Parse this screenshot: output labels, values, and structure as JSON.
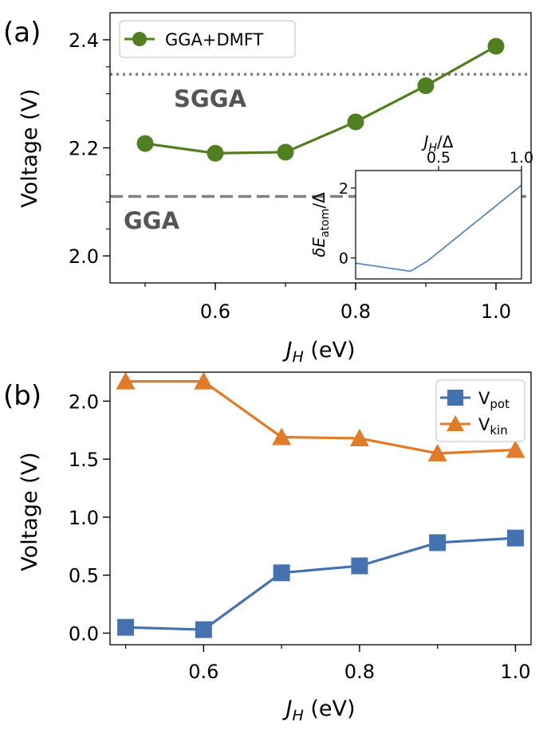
{
  "colors": {
    "green": "#4f7f1f",
    "blue": "#4472b0",
    "orange": "#e07b27",
    "ref_gray": "#808080",
    "ref_text": "#555555",
    "inset_line": "#5b86b5"
  },
  "chart_data": [
    {
      "panel_label": "(a)",
      "type": "line",
      "xlabel_main": "J",
      "xlabel_sub": "H",
      "xlabel_unit": " (eV)",
      "ylabel": "Voltage (V)",
      "xlim": [
        0.45,
        1.05
      ],
      "ylim": [
        1.95,
        2.45
      ],
      "xticks": [
        0.6,
        0.8,
        1.0
      ],
      "xtick_labels": [
        "0.6",
        "0.8",
        "1.0"
      ],
      "yticks": [
        2.0,
        2.2,
        2.4
      ],
      "ytick_labels": [
        "2.0",
        "2.2",
        "2.4"
      ],
      "legend_position": "top-left",
      "series": [
        {
          "name": "GGA+DMFT",
          "x": [
            0.5,
            0.6,
            0.7,
            0.8,
            0.9,
            1.0
          ],
          "values": [
            2.208,
            2.19,
            2.192,
            2.248,
            2.315,
            2.388
          ]
        }
      ],
      "reference_lines": [
        {
          "label": "SGGA",
          "value": 2.336,
          "style": "dotted"
        },
        {
          "label": "GGA",
          "value": 2.11,
          "style": "dashed"
        }
      ],
      "inset": {
        "xlabel_main": "J",
        "xlabel_sub": "H",
        "xlabel_rest": "/Δ",
        "ylabel_main": "δE",
        "ylabel_sub": "atom",
        "ylabel_rest": "/Δ",
        "xlim": [
          0.0,
          1.0
        ],
        "ylim": [
          -0.6,
          2.5
        ],
        "xticks": [
          0.5,
          1.0
        ],
        "xtick_labels": [
          "0.5",
          "1.0"
        ],
        "yticks": [
          0,
          2
        ],
        "ytick_labels": [
          "0",
          "2"
        ],
        "x": [
          0.0,
          0.33,
          0.43,
          1.0
        ],
        "y": [
          -0.15,
          -0.38,
          -0.1,
          2.08
        ]
      }
    },
    {
      "panel_label": "(b)",
      "type": "line",
      "xlabel_main": "J",
      "xlabel_sub": "H",
      "xlabel_unit": " (eV)",
      "ylabel": "Voltage (V)",
      "xlim": [
        0.48,
        1.02
      ],
      "ylim": [
        -0.1,
        2.25
      ],
      "xticks": [
        0.6,
        0.8,
        1.0
      ],
      "xtick_labels": [
        "0.6",
        "0.8",
        "1.0"
      ],
      "yticks": [
        0.0,
        0.5,
        1.0,
        1.5,
        2.0
      ],
      "ytick_labels": [
        "0.0",
        "0.5",
        "1.0",
        "1.5",
        "2.0"
      ],
      "legend_position": "top-right",
      "series": [
        {
          "name": "V",
          "sub": "pot",
          "x": [
            0.5,
            0.6,
            0.7,
            0.8,
            0.9,
            1.0
          ],
          "values": [
            0.05,
            0.03,
            0.52,
            0.58,
            0.78,
            0.82
          ]
        },
        {
          "name": "V",
          "sub": "kin",
          "x": [
            0.5,
            0.6,
            0.7,
            0.8,
            0.9,
            1.0
          ],
          "values": [
            2.17,
            2.17,
            1.69,
            1.68,
            1.55,
            1.58
          ]
        }
      ]
    }
  ]
}
